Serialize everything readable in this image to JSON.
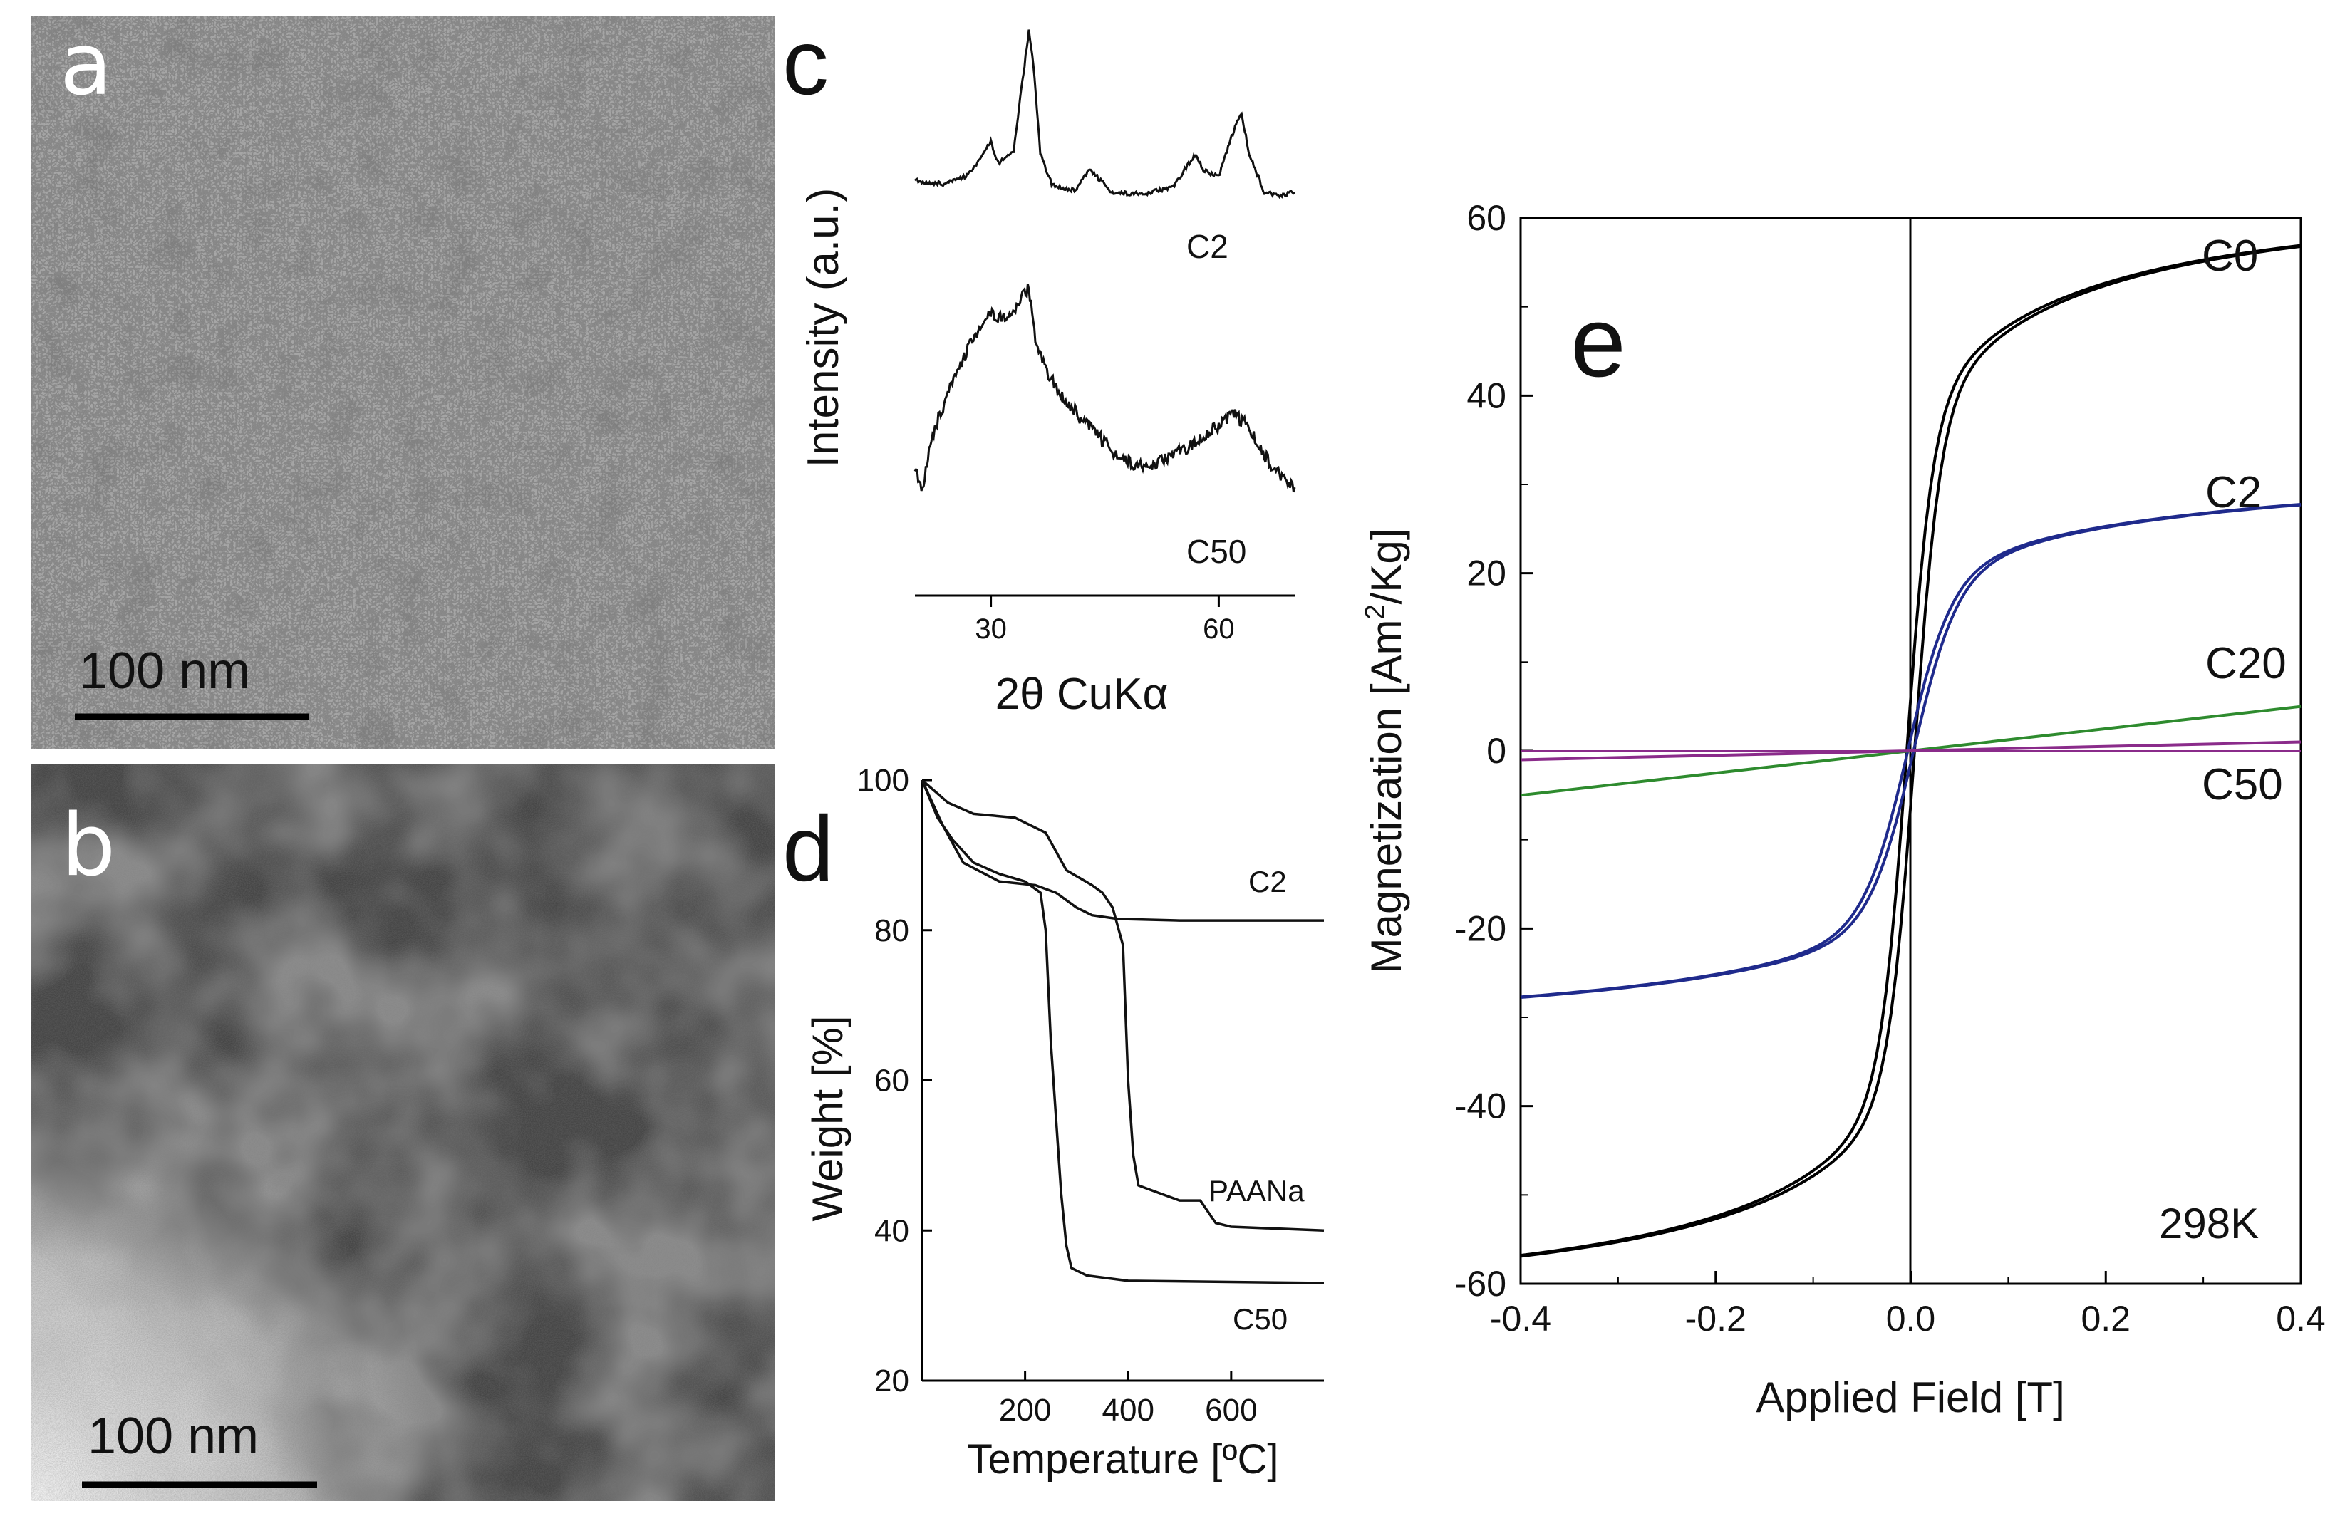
{
  "panels": {
    "a": {
      "letter": "a",
      "scale_bar_label": "100 nm"
    },
    "b": {
      "letter": "b",
      "scale_bar_label": "100 nm"
    }
  },
  "chart_data": [
    {
      "panel": "c",
      "letter": "c",
      "type": "line",
      "ylabel": "Intensity (a.u.)",
      "xlabel": "2θ CuKα",
      "xlim": [
        20,
        70
      ],
      "x_ticks": [
        30,
        60
      ],
      "x_tick_labels": [
        "30",
        "60"
      ],
      "series": [
        {
          "name": "C2",
          "points": [
            [
              20,
              0.12
            ],
            [
              24,
              0.1
            ],
            [
              27,
              0.15
            ],
            [
              29,
              0.28
            ],
            [
              30,
              0.35
            ],
            [
              31,
              0.22
            ],
            [
              33,
              0.3
            ],
            [
              34,
              0.65
            ],
            [
              35,
              1.0
            ],
            [
              35.6,
              0.8
            ],
            [
              36.5,
              0.28
            ],
            [
              38,
              0.1
            ],
            [
              41,
              0.06
            ],
            [
              43,
              0.18
            ],
            [
              44,
              0.14
            ],
            [
              46,
              0.05
            ],
            [
              50,
              0.04
            ],
            [
              54,
              0.08
            ],
            [
              56,
              0.22
            ],
            [
              57,
              0.28
            ],
            [
              58,
              0.18
            ],
            [
              60,
              0.14
            ],
            [
              62,
              0.42
            ],
            [
              63,
              0.52
            ],
            [
              64,
              0.28
            ],
            [
              66,
              0.05
            ],
            [
              68,
              0.03
            ],
            [
              70,
              0.05
            ]
          ]
        },
        {
          "name": "C50",
          "points": [
            [
              20,
              0.1
            ],
            [
              21,
              0.02
            ],
            [
              22,
              0.25
            ],
            [
              24,
              0.45
            ],
            [
              26,
              0.62
            ],
            [
              28,
              0.78
            ],
            [
              30,
              0.88
            ],
            [
              32,
              0.85
            ],
            [
              34,
              0.95
            ],
            [
              35,
              1.0
            ],
            [
              36,
              0.7
            ],
            [
              38,
              0.55
            ],
            [
              40,
              0.45
            ],
            [
              42,
              0.35
            ],
            [
              44,
              0.28
            ],
            [
              46,
              0.2
            ],
            [
              48,
              0.15
            ],
            [
              50,
              0.12
            ],
            [
              52,
              0.14
            ],
            [
              54,
              0.18
            ],
            [
              56,
              0.22
            ],
            [
              58,
              0.28
            ],
            [
              60,
              0.32
            ],
            [
              62,
              0.38
            ],
            [
              64,
              0.32
            ],
            [
              66,
              0.18
            ],
            [
              68,
              0.08
            ],
            [
              70,
              0.02
            ]
          ]
        }
      ],
      "annotations": [
        "C2",
        "C50"
      ]
    },
    {
      "panel": "d",
      "letter": "d",
      "type": "line",
      "title": "",
      "xlabel": "Temperature [ºC]",
      "ylabel": "Weight [%]",
      "xlim": [
        0,
        780
      ],
      "ylim": [
        20,
        100
      ],
      "x_ticks": [
        200,
        400,
        600
      ],
      "x_tick_labels": [
        "200",
        "400",
        "600"
      ],
      "y_ticks": [
        20,
        40,
        60,
        80,
        100
      ],
      "y_tick_labels": [
        "20",
        "40",
        "60",
        "80",
        "100"
      ],
      "series": [
        {
          "name": "C2",
          "points": [
            [
              0,
              100
            ],
            [
              40,
              94
            ],
            [
              80,
              89
            ],
            [
              150,
              86.5
            ],
            [
              220,
              86
            ],
            [
              260,
              85
            ],
            [
              300,
              83
            ],
            [
              330,
              82
            ],
            [
              380,
              81.5
            ],
            [
              500,
              81.3
            ],
            [
              780,
              81.3
            ]
          ]
        },
        {
          "name": "PAANa",
          "points": [
            [
              0,
              100
            ],
            [
              50,
              97
            ],
            [
              100,
              95.5
            ],
            [
              180,
              95
            ],
            [
              240,
              93
            ],
            [
              280,
              88
            ],
            [
              330,
              86
            ],
            [
              350,
              85
            ],
            [
              370,
              83
            ],
            [
              390,
              78
            ],
            [
              400,
              60
            ],
            [
              410,
              50
            ],
            [
              420,
              46
            ],
            [
              460,
              45
            ],
            [
              500,
              44
            ],
            [
              540,
              44
            ],
            [
              570,
              41
            ],
            [
              600,
              40.5
            ],
            [
              780,
              40
            ]
          ]
        },
        {
          "name": "C50",
          "points": [
            [
              0,
              100
            ],
            [
              30,
              95
            ],
            [
              60,
              92
            ],
            [
              100,
              89
            ],
            [
              150,
              87.5
            ],
            [
              200,
              86.5
            ],
            [
              230,
              85
            ],
            [
              240,
              80
            ],
            [
              250,
              65
            ],
            [
              260,
              55
            ],
            [
              270,
              45
            ],
            [
              280,
              38
            ],
            [
              290,
              35
            ],
            [
              320,
              34
            ],
            [
              400,
              33.3
            ],
            [
              780,
              33
            ]
          ]
        }
      ],
      "annotations": [
        "C2",
        "PAANa",
        "C50"
      ]
    },
    {
      "panel": "e",
      "letter": "e",
      "type": "line",
      "xlabel": "Applied Field [T]",
      "ylabel": "Magnetization [Am²/Kg]",
      "ylabel_parts": {
        "pre": "Magnetization [Am",
        "sup": "2",
        "post": "/Kg]"
      },
      "xlim": [
        -0.4,
        0.4
      ],
      "ylim": [
        -60,
        60
      ],
      "x_ticks": [
        -0.4,
        -0.2,
        0.0,
        0.2,
        0.4
      ],
      "x_tick_labels": [
        "-0.4",
        "-0.2",
        "0.0",
        "0.2",
        "0.4"
      ],
      "y_ticks": [
        -60,
        -40,
        -20,
        0,
        20,
        40,
        60
      ],
      "y_tick_labels": [
        "-60",
        "-40",
        "-20",
        "0",
        "20",
        "40",
        "60"
      ],
      "temperature_label": "298K",
      "series": [
        {
          "name": "C0",
          "color": "#000000",
          "ms": 64,
          "h0": 0.06,
          "hysteresis": 0.004
        },
        {
          "name": "C2",
          "color": "#1f2a8c",
          "ms": 33,
          "h0": 0.1,
          "hysteresis": 0.003
        },
        {
          "name": "C20",
          "color": "#2e8b2e",
          "slope": 12.5
        },
        {
          "name": "C50",
          "color": "#8a2b8a",
          "slope": 2.5
        }
      ],
      "annotations": [
        "C0",
        "C2",
        "C20",
        "C50"
      ]
    }
  ]
}
